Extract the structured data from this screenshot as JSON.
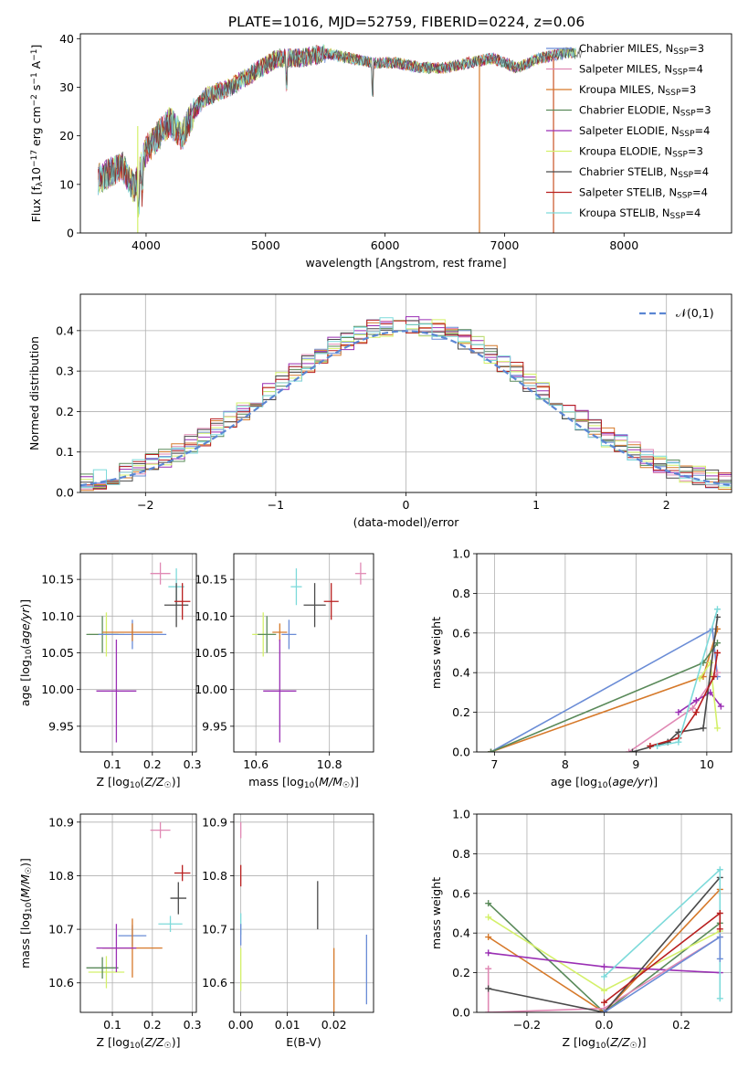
{
  "figure_title": "PLATE=1016, MJD=52759, FIBERID=0224, z=0.06",
  "colors": {
    "Chabrier MILES": "#6a8cd6",
    "Salpeter MILES": "#e089b4",
    "Kroupa MILES": "#d6792a",
    "Chabrier ELODIE": "#5a8a5a",
    "Salpeter ELODIE": "#9a2fb4",
    "Kroupa ELODIE": "#d4f06a",
    "Chabrier STELIB": "#4a4a4a",
    "Salpeter STELIB": "#b81f1f",
    "Kroupa STELIB": "#7ddada"
  },
  "chart_data": [
    {
      "id": "spectrum",
      "type": "line",
      "xlabel": "wavelength [Angstrom, rest frame]",
      "ylabel": "Flux [f_λ 10^-17 erg cm^-2 s^-1 A^-1]",
      "xlim": [
        3450,
        8900
      ],
      "ylim": [
        0,
        41
      ],
      "xticks": [
        4000,
        5000,
        6000,
        7000,
        8000
      ],
      "yticks": [
        0,
        10,
        20,
        30,
        40
      ],
      "grid": false,
      "legend": "top-right",
      "series": [
        {
          "name": "Chabrier MILES, N_SSP=3"
        },
        {
          "name": "Salpeter MILES, N_SSP=4"
        },
        {
          "name": "Kroupa MILES, N_SSP=3"
        },
        {
          "name": "Chabrier ELODIE, N_SSP=3"
        },
        {
          "name": "Salpeter ELODIE, N_SSP=4"
        },
        {
          "name": "Kroupa ELODIE, N_SSP=3"
        },
        {
          "name": "Chabrier STELIB, N_SSP=4"
        },
        {
          "name": "Salpeter STELIB, N_SSP=4"
        },
        {
          "name": "Kroupa STELIB, N_SSP=4"
        }
      ],
      "spectrum_anchor_points": {
        "x": [
          3600,
          3800,
          3900,
          4000,
          4100,
          4200,
          4300,
          4400,
          4500,
          4700,
          4900,
          5100,
          5300,
          5500,
          5700,
          5900,
          6100,
          6300,
          6500,
          6700,
          6900,
          7100,
          7300,
          7500,
          7600
        ],
        "y": [
          11,
          14,
          9,
          17,
          20,
          23,
          20,
          25,
          28,
          30,
          33,
          36,
          36,
          37,
          36,
          35,
          35,
          34,
          34,
          35,
          36,
          34,
          36,
          37,
          37
        ]
      }
    },
    {
      "id": "residual_hist",
      "type": "area",
      "xlabel": "(data-model)/error",
      "ylabel": "Normed distribution",
      "xlim": [
        -2.5,
        2.5
      ],
      "ylim": [
        0,
        0.49
      ],
      "xticks": [
        -2,
        -1,
        0,
        1,
        2
      ],
      "yticks": [
        0.0,
        0.1,
        0.2,
        0.3,
        0.4
      ],
      "grid": true,
      "legend": "top-right",
      "reference": {
        "name": "𝒩(0,1)",
        "mean": 0,
        "sigma": 1
      }
    },
    {
      "id": "z_vs_age",
      "type": "scatter",
      "xlabel": "Z [log10(Z/Z☉)]",
      "ylabel": "age [log10(age/yr)]",
      "xlim": [
        0.02,
        0.31
      ],
      "ylim": [
        9.915,
        10.185
      ],
      "xticks": [
        0.1,
        0.2,
        0.3
      ],
      "yticks": [
        9.95,
        10.0,
        10.05,
        10.1,
        10.15
      ],
      "grid": true,
      "points": [
        {
          "series": "Salpeter MILES",
          "x": 0.22,
          "y": 10.158,
          "xerr": 0.025,
          "yerr": 0.015
        },
        {
          "series": "Kroupa STELIB",
          "x": 0.26,
          "y": 10.14,
          "xerr": 0.02,
          "yerr": 0.025
        },
        {
          "series": "Chabrier STELIB",
          "x": 0.26,
          "y": 10.115,
          "xerr": 0.03,
          "yerr": 0.03
        },
        {
          "series": "Salpeter STELIB",
          "x": 0.275,
          "y": 10.12,
          "xerr": 0.02,
          "yerr": 0.025
        },
        {
          "series": "Kroupa ELODIE",
          "x": 0.085,
          "y": 10.075,
          "xerr": 0.045,
          "yerr": 0.03
        },
        {
          "series": "Chabrier ELODIE",
          "x": 0.075,
          "y": 10.075,
          "xerr": 0.04,
          "yerr": 0.025
        },
        {
          "series": "Chabrier MILES",
          "x": 0.15,
          "y": 10.075,
          "xerr": 0.085,
          "yerr": 0.02
        },
        {
          "series": "Kroupa MILES",
          "x": 0.15,
          "y": 10.078,
          "xerr": 0.075,
          "yerr": 0.012
        },
        {
          "series": "Salpeter ELODIE",
          "x": 0.11,
          "y": 9.998,
          "xerr": 0.05,
          "yerr": 0.07
        }
      ]
    },
    {
      "id": "mass_vs_age",
      "type": "scatter",
      "xlabel": "mass [log10(M/M☉)]",
      "ylabel": "",
      "xlim": [
        10.54,
        10.92
      ],
      "ylim": [
        9.915,
        10.185
      ],
      "xticks": [
        10.6,
        10.8
      ],
      "yticks": [
        9.95,
        10.0,
        10.05,
        10.1,
        10.15
      ],
      "grid": true,
      "points": [
        {
          "series": "Salpeter MILES",
          "x": 10.885,
          "y": 10.158,
          "xerr": 0.015,
          "yerr": 0.015
        },
        {
          "series": "Kroupa STELIB",
          "x": 10.71,
          "y": 10.14,
          "xerr": 0.015,
          "yerr": 0.025
        },
        {
          "series": "Chabrier STELIB",
          "x": 10.76,
          "y": 10.115,
          "xerr": 0.03,
          "yerr": 0.03
        },
        {
          "series": "Salpeter STELIB",
          "x": 10.805,
          "y": 10.12,
          "xerr": 0.02,
          "yerr": 0.025
        },
        {
          "series": "Kroupa ELODIE",
          "x": 10.62,
          "y": 10.075,
          "xerr": 0.03,
          "yerr": 0.03
        },
        {
          "series": "Chabrier ELODIE",
          "x": 10.63,
          "y": 10.075,
          "xerr": 0.025,
          "yerr": 0.025
        },
        {
          "series": "Chabrier MILES",
          "x": 10.69,
          "y": 10.075,
          "xerr": 0.02,
          "yerr": 0.02
        },
        {
          "series": "Kroupa MILES",
          "x": 10.665,
          "y": 10.078,
          "xerr": 0.02,
          "yerr": 0.012
        },
        {
          "series": "Salpeter ELODIE",
          "x": 10.665,
          "y": 9.998,
          "xerr": 0.045,
          "yerr": 0.07
        }
      ]
    },
    {
      "id": "age_weight",
      "type": "line",
      "xlabel": "age [log10(age/yr)]",
      "ylabel": "mass weight",
      "xlim": [
        6.75,
        10.35
      ],
      "ylim": [
        0,
        1.0
      ],
      "xticks": [
        7,
        8,
        9,
        10
      ],
      "yticks": [
        0.0,
        0.2,
        0.4,
        0.6,
        0.8,
        1.0
      ],
      "grid": true,
      "series": [
        {
          "name": "Chabrier MILES",
          "x": [
            6.95,
            10.08,
            10.15
          ],
          "y": [
            0.0,
            0.62,
            0.38
          ]
        },
        {
          "name": "Kroupa MILES",
          "x": [
            6.95,
            9.95,
            10.15
          ],
          "y": [
            0.0,
            0.38,
            0.62
          ]
        },
        {
          "name": "Chabrier ELODIE",
          "x": [
            6.95,
            9.95,
            10.15
          ],
          "y": [
            0.0,
            0.45,
            0.55
          ]
        },
        {
          "name": "Salpeter MILES",
          "x": [
            8.9,
            9.8,
            10.15
          ],
          "y": [
            0.0,
            0.22,
            0.4
          ]
        },
        {
          "name": "Salpeter ELODIE",
          "x": [
            9.6,
            9.85,
            10.05,
            10.2
          ],
          "y": [
            0.2,
            0.26,
            0.3,
            0.23
          ]
        },
        {
          "name": "Kroupa ELODIE",
          "x": [
            9.9,
            10.05,
            10.15
          ],
          "y": [
            0.37,
            0.45,
            0.12
          ]
        },
        {
          "name": "Chabrier STELIB",
          "x": [
            8.95,
            9.45,
            9.6,
            9.95,
            10.15
          ],
          "y": [
            0.0,
            0.05,
            0.1,
            0.12,
            0.68
          ]
        },
        {
          "name": "Salpeter STELIB",
          "x": [
            9.2,
            9.6,
            9.85,
            10.1,
            10.15
          ],
          "y": [
            0.03,
            0.07,
            0.2,
            0.38,
            0.5
          ]
        },
        {
          "name": "Kroupa STELIB",
          "x": [
            9.3,
            9.6,
            10.15
          ],
          "y": [
            0.03,
            0.05,
            0.72
          ]
        }
      ]
    },
    {
      "id": "z_vs_mass",
      "type": "scatter",
      "xlabel": "Z [log10(Z/Z☉)]",
      "ylabel": "mass [log10(M/M☉)]",
      "xlim": [
        0.02,
        0.31
      ],
      "ylim": [
        10.545,
        10.915
      ],
      "xticks": [
        0.1,
        0.2,
        0.3
      ],
      "yticks": [
        10.6,
        10.7,
        10.8,
        10.9
      ],
      "grid": true,
      "points": [
        {
          "series": "Salpeter MILES",
          "x": 0.22,
          "y": 10.885,
          "xerr": 0.025,
          "yerr": 0.015
        },
        {
          "series": "Kroupa STELIB",
          "x": 0.245,
          "y": 10.71,
          "xerr": 0.03,
          "yerr": 0.015
        },
        {
          "series": "Chabrier STELIB",
          "x": 0.265,
          "y": 10.758,
          "xerr": 0.02,
          "yerr": 0.03
        },
        {
          "series": "Salpeter STELIB",
          "x": 0.275,
          "y": 10.805,
          "xerr": 0.02,
          "yerr": 0.015
        },
        {
          "series": "Kroupa ELODIE",
          "x": 0.085,
          "y": 10.62,
          "xerr": 0.045,
          "yerr": 0.03
        },
        {
          "series": "Chabrier ELODIE",
          "x": 0.075,
          "y": 10.628,
          "xerr": 0.04,
          "yerr": 0.02
        },
        {
          "series": "Chabrier MILES",
          "x": 0.15,
          "y": 10.688,
          "xerr": 0.035,
          "yerr": 0.02
        },
        {
          "series": "Kroupa MILES",
          "x": 0.15,
          "y": 10.665,
          "xerr": 0.075,
          "yerr": 0.055
        },
        {
          "series": "Salpeter ELODIE",
          "x": 0.11,
          "y": 10.665,
          "xerr": 0.05,
          "yerr": 0.045
        }
      ]
    },
    {
      "id": "ebv_vs_mass",
      "type": "scatter",
      "xlabel": "E(B-V)",
      "ylabel": "",
      "xlim": [
        -0.0015,
        0.0285
      ],
      "ylim": [
        10.545,
        10.915
      ],
      "xticks": [
        0.0,
        0.01,
        0.02
      ],
      "yticks": [
        10.6,
        10.7,
        10.8,
        10.9
      ],
      "grid": true,
      "points": [
        {
          "series": "Salpeter MILES",
          "x": 0.0,
          "y": 10.885,
          "xerr": 0,
          "yerr": 0.015
        },
        {
          "series": "Salpeter STELIB",
          "x": 0.0,
          "y": 10.8,
          "xerr": 0,
          "yerr": 0.02
        },
        {
          "series": "Kroupa STELIB",
          "x": 0.0,
          "y": 10.71,
          "xerr": 0,
          "yerr": 0.02
        },
        {
          "series": "Chabrier MILES",
          "x": 0.0,
          "y": 10.69,
          "xerr": 0,
          "yerr": 0.02
        },
        {
          "series": "Kroupa ELODIE",
          "x": 0.0,
          "y": 10.625,
          "xerr": 0,
          "yerr": 0.04
        },
        {
          "series": "Chabrier STELIB",
          "x": 0.0165,
          "y": 10.745,
          "xerr": 0,
          "yerr": 0.045
        },
        {
          "series": "Kroupa MILES",
          "x": 0.02,
          "y": 10.6,
          "xerr": 0,
          "yerr": 0.065
        },
        {
          "series": "Chabrier MILES",
          "x": 0.027,
          "y": 10.625,
          "xerr": 0,
          "yerr": 0.065
        }
      ]
    },
    {
      "id": "z_weight",
      "type": "line",
      "xlabel": "Z [log10(Z/Z☉)]",
      "ylabel": "mass weight",
      "xlim": [
        -0.33,
        0.33
      ],
      "ylim": [
        0,
        1.0
      ],
      "xticks": [
        -0.2,
        0.0,
        0.2
      ],
      "yticks": [
        0.0,
        0.2,
        0.4,
        0.6,
        0.8,
        1.0
      ],
      "grid": true,
      "series": [
        {
          "name": "Chabrier ELODIE",
          "x": [
            -0.3,
            0.0,
            0.3
          ],
          "y": [
            0.55,
            0.0,
            0.45
          ]
        },
        {
          "name": "Kroupa ELODIE",
          "x": [
            -0.3,
            0.0,
            0.3
          ],
          "y": [
            0.48,
            0.11,
            0.41
          ]
        },
        {
          "name": "Kroupa MILES",
          "x": [
            -0.3,
            0.0,
            0.3
          ],
          "y": [
            0.38,
            0.0,
            0.62
          ]
        },
        {
          "name": "Salpeter ELODIE",
          "x": [
            -0.3,
            0.0,
            0.3
          ],
          "y": [
            0.3,
            0.23,
            0.2
          ]
        },
        {
          "name": "Salpeter MILES",
          "x": [
            -0.3,
            -0.3,
            0.0,
            0.3
          ],
          "y": [
            0.22,
            0.0,
            0.02,
            0.38
          ]
        },
        {
          "name": "Chabrier STELIB",
          "x": [
            -0.3,
            0.0,
            0.3
          ],
          "y": [
            0.12,
            0.0,
            0.68
          ]
        },
        {
          "name": "Kroupa STELIB",
          "x": [
            0.0,
            0.3,
            0.3
          ],
          "y": [
            0.18,
            0.72,
            0.07
          ]
        },
        {
          "name": "Salpeter STELIB",
          "x": [
            0.0,
            0.3,
            0.3
          ],
          "y": [
            0.05,
            0.5,
            0.42
          ]
        },
        {
          "name": "Chabrier MILES",
          "x": [
            0.0,
            0.3,
            0.3
          ],
          "y": [
            0.0,
            0.38,
            0.27
          ]
        }
      ]
    }
  ]
}
